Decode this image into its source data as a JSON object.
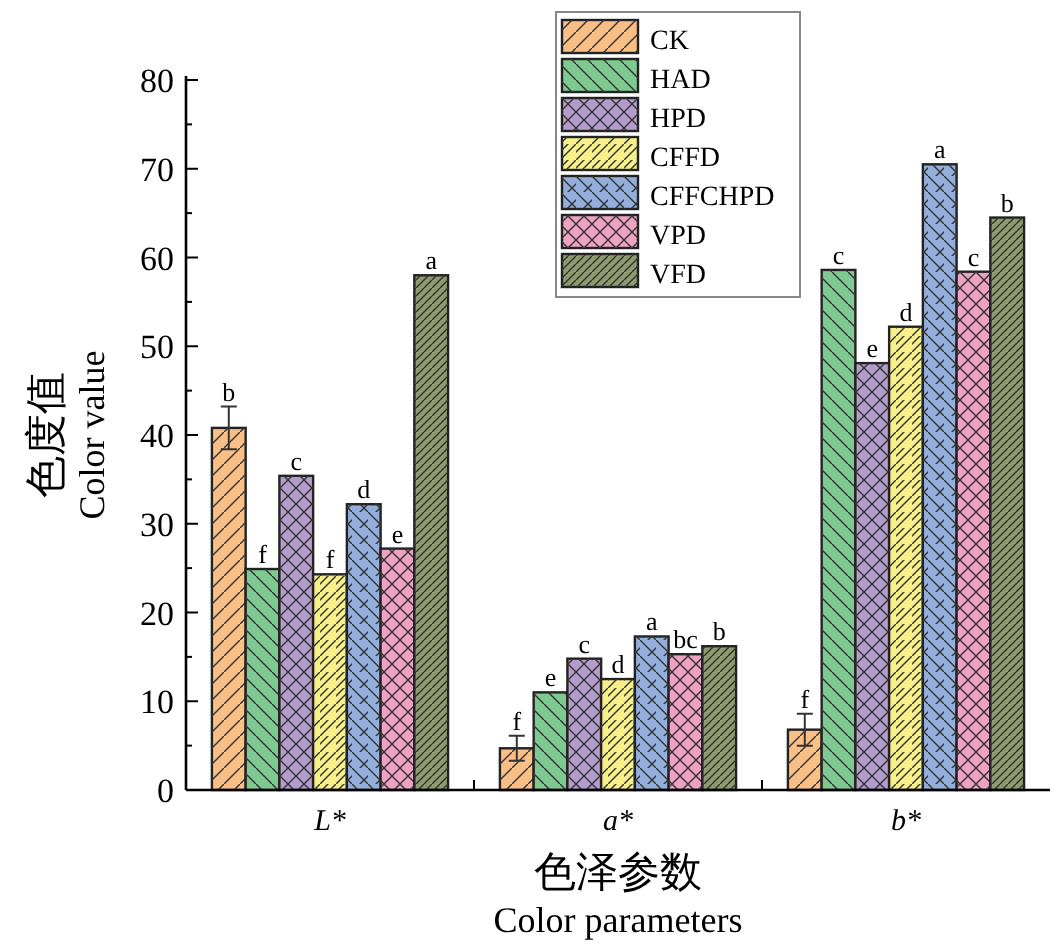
{
  "chart_data": {
    "type": "bar",
    "xlabel": "色泽参数\nColor parameters",
    "ylabel": "色度值\nColor value",
    "categories": [
      "L*",
      "a*",
      "b*"
    ],
    "series": [
      {
        "name": "CK",
        "color": "#f9bf85",
        "values": [
          40.8,
          4.7,
          6.8
        ],
        "errors": [
          2.4,
          1.4,
          1.8
        ],
        "value_labels": [
          "b",
          "f",
          "f"
        ]
      },
      {
        "name": "HAD",
        "color": "#7dc98f",
        "values": [
          24.9,
          11.0,
          58.6
        ],
        "value_labels": [
          "f",
          "e",
          "c"
        ]
      },
      {
        "name": "HPD",
        "color": "#b39ccc",
        "values": [
          35.4,
          14.8,
          48.1
        ],
        "value_labels": [
          "c",
          "c",
          "e"
        ]
      },
      {
        "name": "CFFD",
        "color": "#f7ef88",
        "values": [
          24.3,
          12.5,
          52.2
        ],
        "value_labels": [
          "f",
          "d",
          "d"
        ]
      },
      {
        "name": "CFFCHPD",
        "color": "#94aedc",
        "values": [
          32.2,
          17.3,
          70.5
        ],
        "value_labels": [
          "d",
          "a",
          "a"
        ]
      },
      {
        "name": "VPD",
        "color": "#eca2c0",
        "values": [
          27.2,
          15.3,
          58.4
        ],
        "value_labels": [
          "e",
          "bc",
          "c"
        ]
      },
      {
        "name": "VFD",
        "color": "#8e9a6c",
        "values": [
          58.0,
          16.2,
          64.5
        ],
        "value_labels": [
          "a",
          "b",
          "b"
        ]
      }
    ],
    "ylim": [
      0,
      80
    ],
    "yticks": [
      0,
      10,
      20,
      30,
      40,
      50,
      60,
      70,
      80
    ],
    "legend": "top"
  }
}
